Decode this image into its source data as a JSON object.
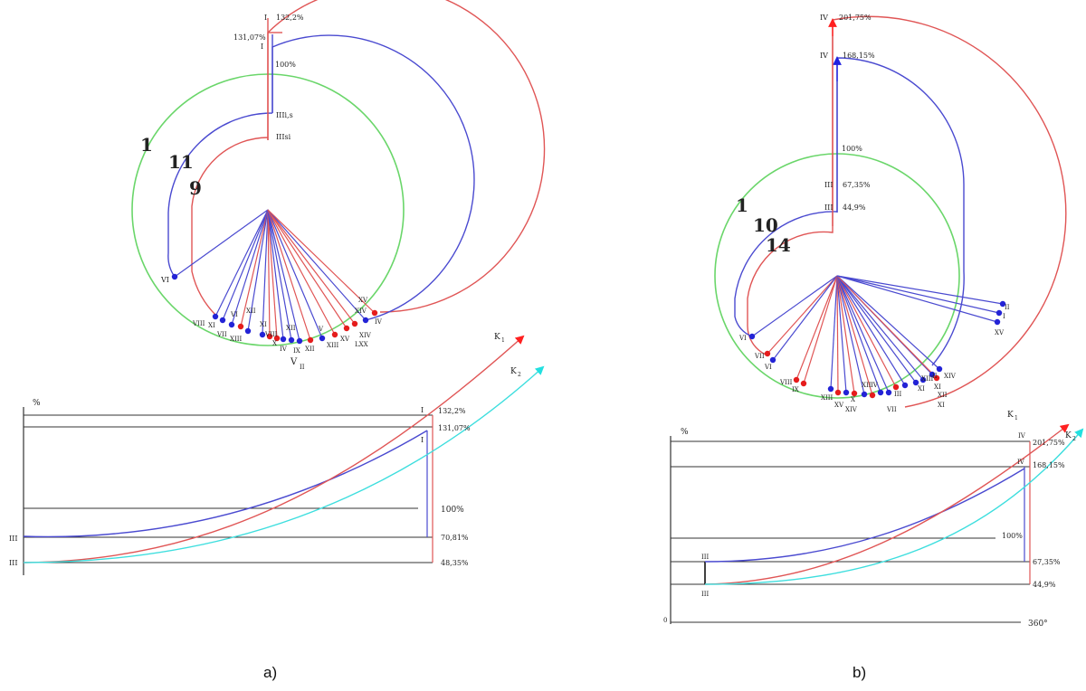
{
  "colors": {
    "red": "#e05555",
    "blue": "#4a4ad0",
    "green": "#6ad66a",
    "cyan": "#3ddede",
    "axis": "#333333",
    "point_red": "#e51c1c",
    "point_blue": "#2323d6"
  },
  "captions": {
    "a": "a)",
    "b": "b)"
  },
  "panel_a": {
    "polar": {
      "top_labels": {
        "i_a": "I",
        "p_132": "132,2%",
        "p_131": "131,07%",
        "i_b": "I",
        "p_100": "100%"
      },
      "curve_numbers": {
        "n1": "1",
        "n11": "11",
        "n9": "9"
      },
      "mid_labels": {
        "iii_a": "IIIi,s",
        "iii_b": "IIIsi"
      },
      "vi_label": "VI",
      "bottom_labels": [
        "VIII",
        "XI",
        "VII",
        "XIII",
        "VI",
        "XII",
        "XI",
        "VIII",
        "X",
        "XII",
        "IV",
        "IX",
        "XII",
        "V",
        "XIII",
        "XV",
        "XIV",
        "LXX",
        "IV",
        "XV",
        "XIV"
      ],
      "v_label": "V",
      "v_sub": "II"
    },
    "chart": {
      "percent_label": "%",
      "k1": "K",
      "k1_sub": "1",
      "k2": "K",
      "k2_sub": "2",
      "right_labels": {
        "p_132": "132,2%",
        "p_131": "131,07%",
        "p_100": "100%",
        "p_70": "70,81%",
        "p_48": "48,35%"
      },
      "roman": {
        "i_top": "I",
        "i_mid": "I",
        "iii_a": "III",
        "iii_b": "III"
      }
    }
  },
  "panel_b": {
    "polar": {
      "top_labels": {
        "iv_a": "IV",
        "p_201": "201,75%",
        "iv_b": "IV",
        "p_168": "168,15%",
        "p_100": "100%",
        "iii_a": "III",
        "p_67": "67,35%",
        "iii_b": "III",
        "p_44": "44,9%"
      },
      "curve_numbers": {
        "n1": "1",
        "n10": "10",
        "n14": "14"
      },
      "right_labels": [
        "II",
        "I",
        "XV"
      ],
      "left_labels": [
        "VI",
        "VII",
        "VI"
      ],
      "bottom_labels": [
        "VIII",
        "IX",
        "XIII",
        "XV",
        "XIV",
        "X",
        "VII",
        "XII",
        "IV",
        "III",
        "XI",
        "XIII",
        "II",
        "XIV",
        "XI",
        "XII",
        "XI"
      ]
    },
    "chart": {
      "percent_label": "%",
      "k1": "K",
      "k1_sub": "1",
      "k2": "K",
      "k2_sub": "2",
      "right_labels": {
        "p_201": "201,75%",
        "p_168": "168,15%",
        "p_100": "100%",
        "p_67": "67,35%",
        "p_44": "44,9%",
        "p_360": "360°"
      },
      "roman": {
        "iv_a": "IV",
        "iv_b": "IV",
        "iii_a": "III",
        "iii_b": "III"
      },
      "zero": "0"
    }
  }
}
